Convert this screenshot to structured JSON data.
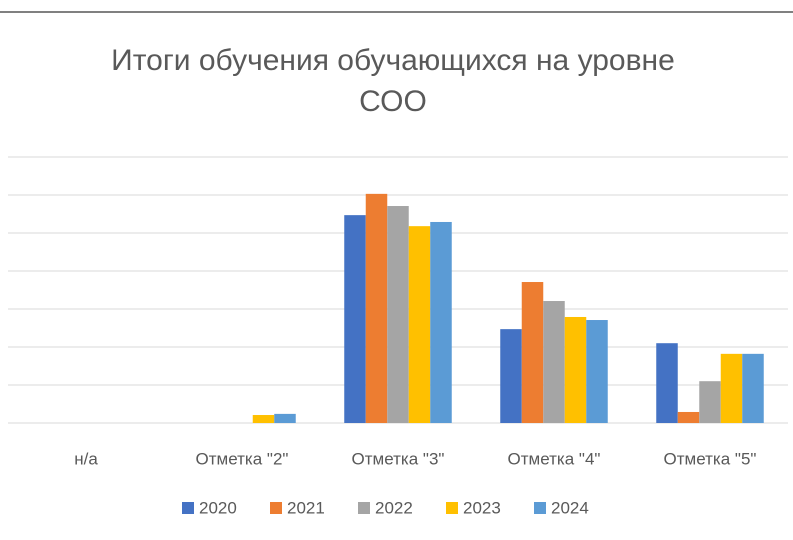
{
  "chart_data": {
    "type": "bar",
    "title": [
      "Итоги обучения обучающихся на уровне",
      "СОО"
    ],
    "categories": [
      "н/а",
      "Отметка \"2\"",
      "Отметка \"3\"",
      "Отметка \"4\"",
      "Отметка \"5\""
    ],
    "series": [
      {
        "name": "2020",
        "color": "#4472c4",
        "values": [
          0,
          0,
          5.47,
          2.47,
          2.1
        ]
      },
      {
        "name": "2021",
        "color": "#ed7d31",
        "values": [
          0,
          0,
          6.03,
          3.71,
          0.29
        ]
      },
      {
        "name": "2022",
        "color": "#a5a5a5",
        "values": [
          0,
          0,
          5.71,
          3.21,
          1.1
        ]
      },
      {
        "name": "2023",
        "color": "#ffc000",
        "values": [
          0,
          0.21,
          5.18,
          2.79,
          1.82
        ]
      },
      {
        "name": "2024",
        "color": "#5b9bd5",
        "values": [
          0,
          0.24,
          5.29,
          2.71,
          1.82
        ]
      }
    ],
    "ylim": [
      0,
      7
    ],
    "yticks": [
      0,
      1,
      2,
      3,
      4,
      5,
      6,
      7
    ],
    "grid": true,
    "legend": "bottom"
  }
}
